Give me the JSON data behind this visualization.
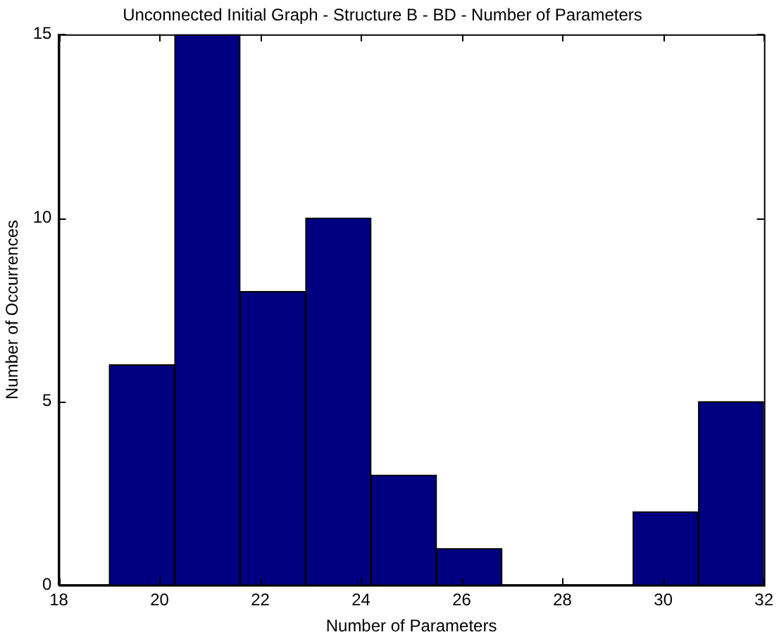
{
  "chart_data": {
    "type": "histogram",
    "title": "Unconnected Initial Graph - Structure B - BD - Number of Parameters",
    "xlabel": "Number of Parameters",
    "ylabel": "Number of Occurrences",
    "bins": [
      19,
      20.3,
      21.6,
      22.9,
      24.2,
      25.5,
      26.8,
      28.1,
      29.4,
      30.7,
      32
    ],
    "values": [
      6,
      15,
      8,
      10,
      3,
      1,
      0,
      0,
      2,
      5
    ],
    "color": "#000080",
    "xlim": [
      18,
      32
    ],
    "xticks": [
      18,
      20,
      22,
      24,
      26,
      28,
      30,
      32
    ],
    "ylim": [
      0,
      15
    ],
    "yticks": [
      0,
      5,
      10,
      15
    ],
    "grid": false,
    "legend": false
  }
}
